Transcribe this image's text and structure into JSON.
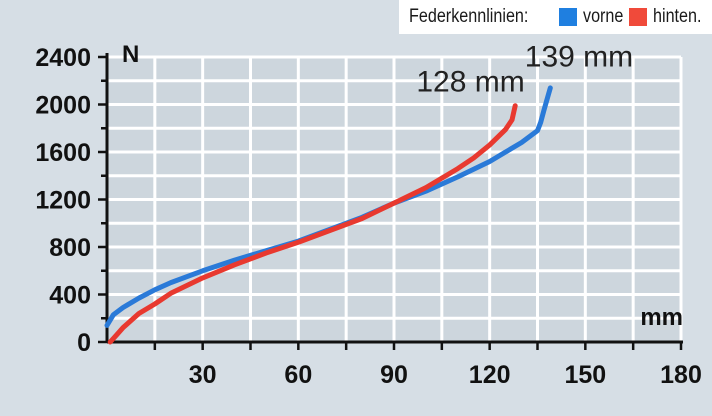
{
  "legend": {
    "title": "Federkennlinien:",
    "items": [
      {
        "label": "vorne",
        "color": "#1f7fe0"
      },
      {
        "label": "hinten.",
        "color": "#f04a3a"
      }
    ]
  },
  "chart_data": {
    "type": "line",
    "title": "",
    "xlabel": "mm",
    "ylabel": "N",
    "xlim": [
      0,
      180
    ],
    "ylim": [
      0,
      2400
    ],
    "xticks": [
      30,
      60,
      90,
      120,
      150,
      180
    ],
    "yticks": [
      0,
      400,
      800,
      1200,
      1600,
      2000,
      2400
    ],
    "grid": true,
    "legend_position": "top-right",
    "series": [
      {
        "name": "vorne",
        "color": "#2a7ad8",
        "x": [
          0,
          2,
          5,
          10,
          15,
          20,
          30,
          40,
          50,
          60,
          70,
          80,
          90,
          100,
          110,
          120,
          125,
          130,
          135,
          136,
          137,
          139
        ],
        "y": [
          140,
          230,
          290,
          370,
          440,
          500,
          600,
          690,
          770,
          850,
          950,
          1050,
          1170,
          1270,
          1390,
          1520,
          1600,
          1680,
          1780,
          1850,
          1950,
          2140
        ]
      },
      {
        "name": "hinten.",
        "color": "#e8392f",
        "x": [
          1,
          3,
          5,
          10,
          15,
          20,
          30,
          40,
          50,
          60,
          70,
          80,
          90,
          100,
          110,
          115,
          120,
          125,
          127,
          128
        ],
        "y": [
          0,
          60,
          120,
          240,
          320,
          410,
          540,
          650,
          750,
          840,
          940,
          1040,
          1170,
          1300,
          1460,
          1550,
          1660,
          1790,
          1870,
          1990
        ]
      }
    ],
    "annotations": [
      {
        "text": "139 mm",
        "x": 148,
        "y": 2320
      },
      {
        "text": "128 mm",
        "x": 114,
        "y": 2110
      }
    ]
  }
}
